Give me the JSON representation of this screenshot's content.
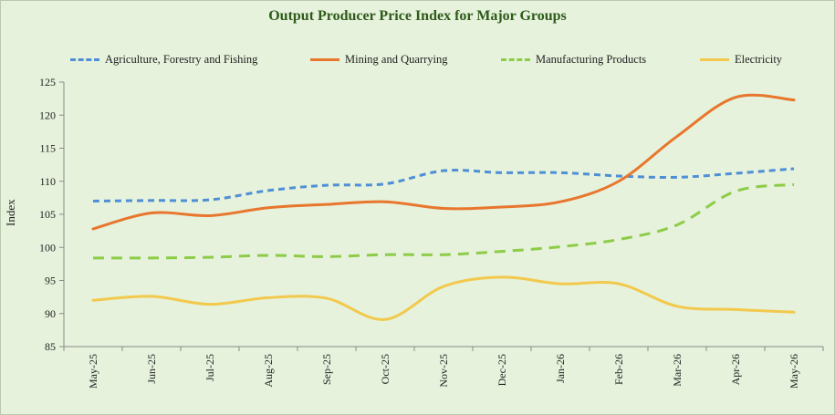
{
  "chart_data": {
    "type": "line",
    "title": "Output Producer Price Index for Major Groups",
    "xlabel": "",
    "ylabel": "Index",
    "ylim": [
      85,
      125
    ],
    "yticks": [
      85,
      90,
      95,
      100,
      105,
      110,
      115,
      120,
      125
    ],
    "categories": [
      "May-25",
      "Jun-25",
      "Jul-25",
      "Aug-25",
      "Sep-25",
      "Oct-25",
      "Nov-25",
      "Dec-25",
      "Jan-26",
      "Feb-26",
      "Mar-26",
      "Apr-26",
      "May-26"
    ],
    "grid": false,
    "legend_position": "top",
    "series": [
      {
        "name": "Agriculture, Forestry and Fishing",
        "color": "#4e8fd6",
        "dash": "dotted",
        "values": [
          107.0,
          107.1,
          107.2,
          108.6,
          109.4,
          109.6,
          111.6,
          111.3,
          111.3,
          110.8,
          110.6,
          111.2,
          111.9
        ]
      },
      {
        "name": "Mining and Quarrying",
        "color": "#e8762d",
        "dash": "solid",
        "values": [
          102.8,
          105.2,
          104.8,
          106.0,
          106.5,
          106.9,
          105.9,
          106.1,
          106.9,
          110.0,
          116.8,
          122.7,
          122.3
        ]
      },
      {
        "name": "Manufacturing Products",
        "color": "#8ccc47",
        "dash": "dashed",
        "values": [
          98.4,
          98.4,
          98.5,
          98.8,
          98.6,
          98.9,
          98.9,
          99.4,
          100.1,
          101.2,
          103.4,
          108.5,
          109.5
        ]
      },
      {
        "name": "Electricity",
        "color": "#f2c94c",
        "dash": "solid",
        "values": [
          92.0,
          92.6,
          91.4,
          92.4,
          92.3,
          89.1,
          94.1,
          95.5,
          94.5,
          94.5,
          91.1,
          90.6,
          90.2
        ]
      }
    ]
  }
}
